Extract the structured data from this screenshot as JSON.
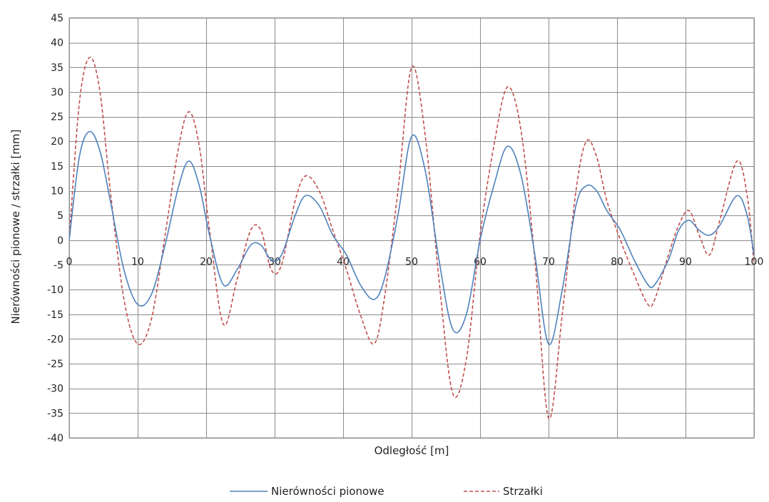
{
  "chart_data": {
    "type": "line",
    "title": "",
    "xlabel": "Odległość [m]",
    "ylabel": "Nierówności pionowe / strzałki [mm]",
    "xlim": [
      0,
      100
    ],
    "ylim": [
      -40,
      45
    ],
    "xticks": [
      0,
      10,
      20,
      30,
      40,
      50,
      60,
      70,
      80,
      90,
      100
    ],
    "yticks": [
      45,
      40,
      35,
      30,
      25,
      20,
      15,
      10,
      5,
      0,
      -5,
      -10,
      -15,
      -20,
      -25,
      -30,
      -35,
      -40
    ],
    "grid": true,
    "legend_position": "bottom",
    "series": [
      {
        "name": "Nierówności pionowe",
        "color": "#4f81bd",
        "dash": "solid",
        "x": [
          0,
          1.5,
          3,
          4.5,
          6,
          8,
          10,
          12,
          14,
          16,
          17.5,
          19,
          20.5,
          22.5,
          24.5,
          26.5,
          28,
          29.5,
          31,
          33,
          34.5,
          36.5,
          38.5,
          40.5,
          42.5,
          44.5,
          46,
          48,
          50,
          52,
          54,
          56,
          58,
          60,
          62,
          64,
          66,
          68,
          70,
          72,
          74,
          75.5,
          77,
          78.5,
          80.5,
          82.5,
          84.5,
          85.5,
          87.5,
          89,
          90.5,
          92,
          93.5,
          95,
          97.5,
          99,
          100
        ],
        "values": [
          0,
          17,
          22,
          18,
          8,
          -6,
          -13,
          -11,
          -1,
          11,
          16,
          11,
          1,
          -9,
          -6,
          -1,
          -1,
          -4,
          -3,
          5,
          9,
          7,
          1,
          -3,
          -9,
          -12,
          -8,
          5,
          21,
          14,
          -4,
          -18,
          -15,
          0,
          11,
          19,
          13,
          -3,
          -21,
          -10,
          7,
          11,
          10,
          6,
          2,
          -4,
          -9,
          -9,
          -4,
          2,
          4,
          2,
          1,
          3,
          9,
          5,
          -3
        ]
      },
      {
        "name": "Strzałki",
        "color": "#c0504d",
        "dash": "dashed",
        "x": [
          0,
          1.5,
          3,
          4.5,
          6,
          8,
          10,
          12,
          14,
          16,
          17.5,
          19,
          20.5,
          22.5,
          24.5,
          26.5,
          28,
          29.5,
          31,
          33,
          34.5,
          36.5,
          38.5,
          40.5,
          42.5,
          44.5,
          46,
          48,
          50,
          52,
          54,
          56,
          58,
          60,
          62,
          64,
          66,
          68,
          70,
          72,
          74,
          75.5,
          77,
          78.5,
          80.5,
          82.5,
          84.5,
          85.5,
          87.5,
          89,
          90.5,
          92,
          93.5,
          95,
          97.5,
          99,
          100
        ],
        "values": [
          0,
          28,
          37,
          30,
          10,
          -12,
          -21,
          -16,
          1,
          19,
          26,
          19,
          2,
          -17,
          -8,
          2,
          2,
          -6,
          -5,
          8,
          13,
          10,
          2,
          -6,
          -15,
          -21,
          -12,
          10,
          35,
          21,
          -8,
          -31,
          -24,
          1,
          19,
          31,
          22,
          -4,
          -36,
          -15,
          10,
          20,
          17,
          8,
          0,
          -7,
          -13,
          -12,
          -3,
          3,
          6,
          1,
          -3,
          4,
          16,
          9,
          -5
        ]
      }
    ]
  }
}
